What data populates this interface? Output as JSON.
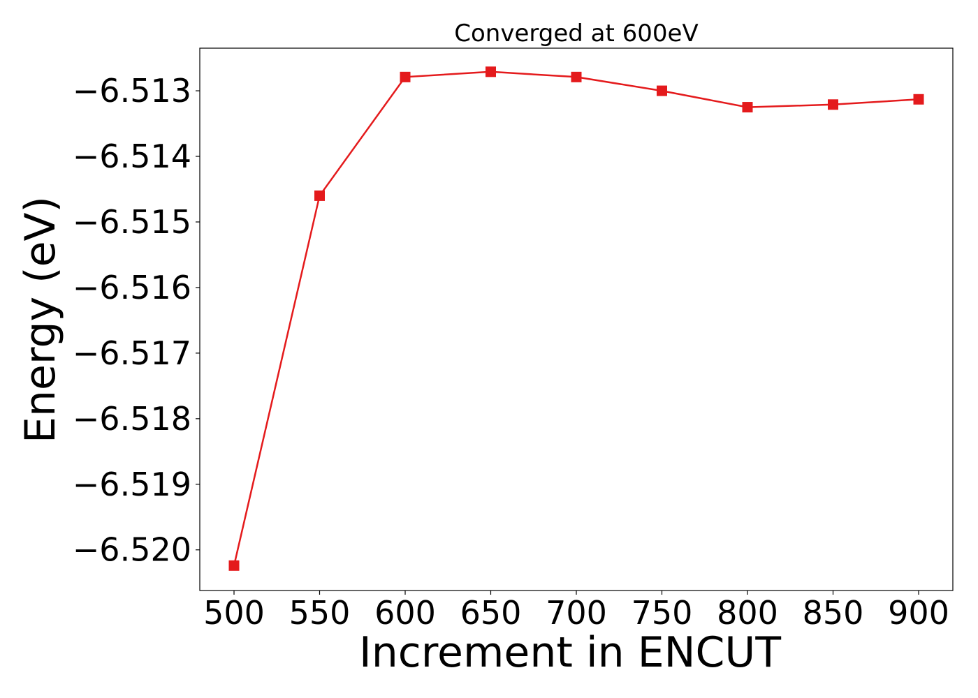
{
  "chart_data": {
    "type": "line",
    "title": "Converged at 600eV",
    "xlabel": "Increment in ENCUT",
    "ylabel": "Energy (eV)",
    "x": [
      500,
      550,
      600,
      650,
      700,
      750,
      800,
      850,
      900
    ],
    "series": [
      {
        "values": [
          -6.52024,
          -6.5146,
          -6.51279,
          -6.51271,
          -6.51279,
          -6.513,
          -6.51325,
          -6.51321,
          -6.51313
        ],
        "color": "#e41a1c",
        "marker": "square"
      }
    ],
    "xticks": [
      500,
      550,
      600,
      650,
      700,
      750,
      800,
      850,
      900
    ],
    "xtick_labels": [
      "500",
      "550",
      "600",
      "650",
      "700",
      "750",
      "800",
      "850",
      "900"
    ],
    "yticks": [
      -6.52,
      -6.519,
      -6.518,
      -6.517,
      -6.516,
      -6.515,
      -6.514,
      -6.513
    ],
    "ytick_labels": [
      "−6.520",
      "−6.519",
      "−6.518",
      "−6.517",
      "−6.516",
      "−6.515",
      "−6.514",
      "−6.513"
    ],
    "xlim": [
      480,
      920
    ],
    "ylim": [
      -6.52062,
      -6.51235
    ],
    "grid": false,
    "legend": "none"
  }
}
